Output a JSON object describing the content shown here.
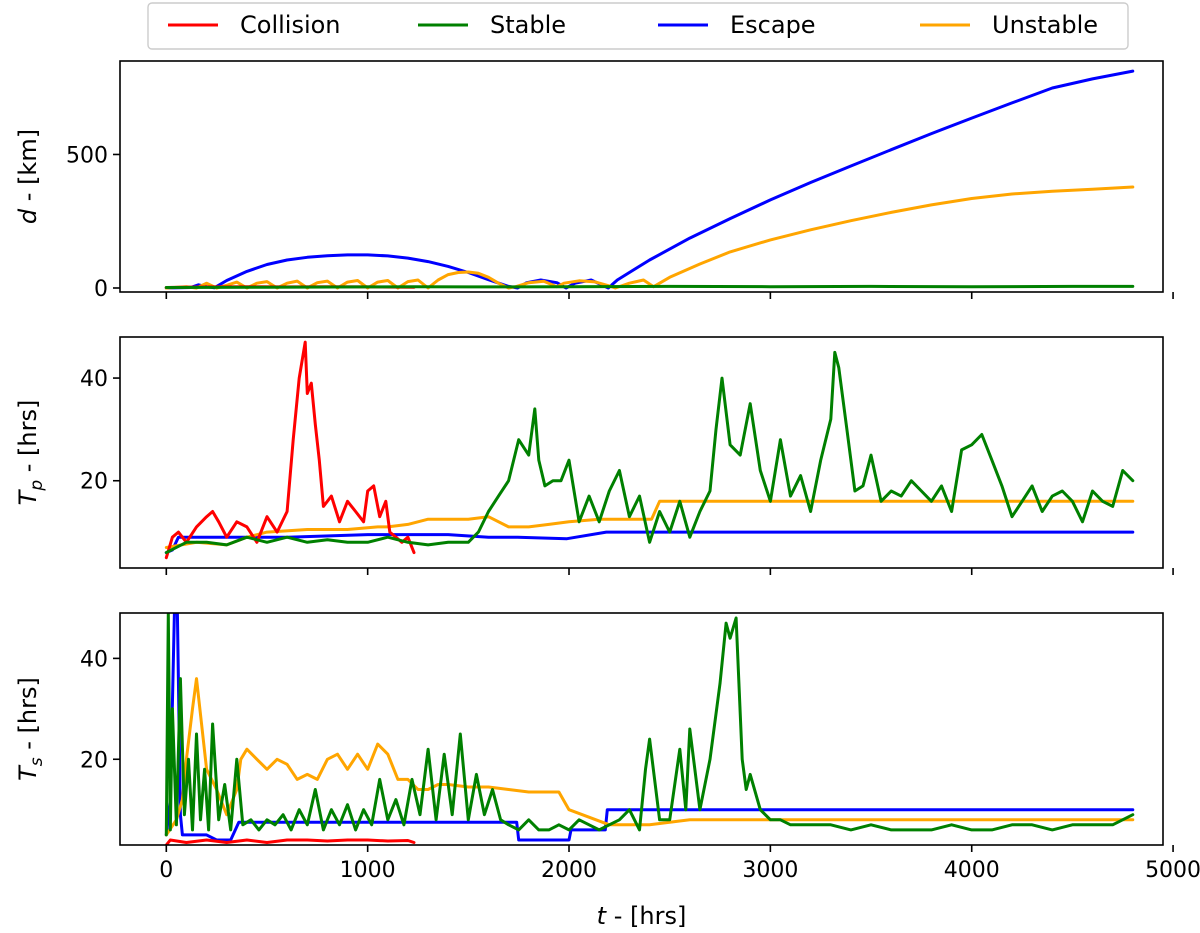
{
  "chart_data": [
    {
      "type": "line",
      "ylabel_main": "d",
      "ylabel_suffix": " - [km]",
      "xlim": [
        -230,
        4950
      ],
      "ylim": [
        -15,
        850
      ],
      "yticks": [
        0,
        500
      ],
      "ytick_labels": [
        "0",
        "500"
      ],
      "series": [
        {
          "name": "Escape",
          "color": "#0000ff",
          "x": [
            0,
            120,
            160,
            200,
            240,
            300,
            400,
            500,
            600,
            700,
            800,
            900,
            1000,
            1100,
            1200,
            1300,
            1400,
            1500,
            1600,
            1700,
            1745,
            1790,
            1860,
            1940,
            1985,
            2030,
            2110,
            2195,
            2240,
            2400,
            2600,
            2800,
            3000,
            3200,
            3400,
            3600,
            3800,
            4000,
            4200,
            4400,
            4600,
            4800
          ],
          "y": [
            0,
            2,
            12,
            5,
            1,
            28,
            62,
            88,
            105,
            115,
            121,
            124,
            124,
            120,
            112,
            99,
            81,
            58,
            31,
            6,
            0,
            20,
            30,
            20,
            0,
            18,
            30,
            0,
            30,
            105,
            187,
            260,
            330,
            395,
            457,
            518,
            578,
            636,
            693,
            749,
            783,
            812
          ]
        },
        {
          "name": "Unstable",
          "color": "#ffa500",
          "x": [
            0,
            100,
            150,
            200,
            250,
            300,
            350,
            400,
            450,
            500,
            550,
            600,
            650,
            700,
            750,
            800,
            850,
            900,
            950,
            1000,
            1050,
            1100,
            1150,
            1200,
            1250,
            1300,
            1350,
            1400,
            1450,
            1500,
            1550,
            1600,
            1650,
            1700,
            1735,
            1800,
            1875,
            1940,
            1975,
            2050,
            2130,
            2200,
            2230,
            2300,
            2370,
            2420,
            2500,
            2650,
            2800,
            3000,
            3200,
            3400,
            3600,
            3800,
            4000,
            4200,
            4400,
            4600,
            4800
          ],
          "y": [
            0,
            5,
            0,
            18,
            0,
            10,
            22,
            0,
            18,
            24,
            0,
            18,
            26,
            0,
            20,
            26,
            0,
            22,
            28,
            0,
            22,
            28,
            0,
            24,
            30,
            0,
            30,
            50,
            58,
            60,
            55,
            40,
            18,
            0,
            5,
            20,
            25,
            5,
            18,
            27,
            23,
            8,
            0,
            18,
            30,
            5,
            40,
            90,
            135,
            180,
            218,
            252,
            283,
            311,
            335,
            352,
            362,
            370,
            378
          ]
        },
        {
          "name": "Collision",
          "color": "#ff0000",
          "x": [
            0,
            200,
            400,
            600,
            800,
            1000,
            1230
          ],
          "y": [
            2,
            4,
            5,
            4,
            5,
            4,
            3
          ]
        },
        {
          "name": "Stable",
          "color": "#008000",
          "x": [
            0,
            500,
            1000,
            1230,
            1500,
            2000,
            2500,
            3000,
            3500,
            4000,
            4500,
            4800
          ],
          "y": [
            2,
            3,
            4,
            5,
            4,
            5,
            6,
            5,
            6,
            5,
            6,
            6
          ]
        }
      ]
    },
    {
      "type": "line",
      "ylabel_main": "T",
      "ylabel_sub": "p",
      "ylabel_suffix": " - [hrs]",
      "xlim": [
        -230,
        4950
      ],
      "ylim": [
        3,
        48
      ],
      "yticks": [
        20,
        40
      ],
      "ytick_labels": [
        "20",
        "40"
      ],
      "series": [
        {
          "name": "Escape",
          "color": "#0000ff",
          "x": [
            0,
            30,
            60,
            200,
            600,
            1000,
            1400,
            1600,
            1745,
            1990,
            2185,
            2400,
            4800
          ],
          "y": [
            6,
            6.5,
            9,
            9,
            9,
            9.5,
            9.5,
            9,
            9,
            8.7,
            10,
            10,
            10
          ]
        },
        {
          "name": "Unstable",
          "color": "#ffa500",
          "x": [
            0,
            150,
            300,
            400,
            500,
            700,
            900,
            1050,
            1100,
            1200,
            1300,
            1500,
            1600,
            1700,
            1800,
            1900,
            2000,
            2150,
            2200,
            2410,
            2450,
            2600,
            2800,
            4800
          ],
          "y": [
            7,
            8,
            7.5,
            9,
            10,
            10.5,
            10.5,
            11,
            11,
            11.5,
            12.5,
            12.5,
            13,
            11,
            11,
            11.5,
            12,
            12.5,
            12.5,
            12.5,
            16,
            16,
            16,
            16
          ]
        },
        {
          "name": "Collision",
          "color": "#ff0000",
          "x": [
            0,
            30,
            60,
            100,
            150,
            200,
            230,
            260,
            300,
            350,
            400,
            450,
            500,
            550,
            600,
            630,
            660,
            690,
            700,
            720,
            740,
            760,
            780,
            820,
            860,
            900,
            940,
            980,
            1000,
            1030,
            1060,
            1090,
            1110,
            1140,
            1170,
            1200,
            1230
          ],
          "y": [
            5,
            9,
            10,
            8,
            11,
            13,
            14,
            12,
            9,
            12,
            11,
            8,
            13,
            10,
            14,
            28,
            40,
            47,
            37,
            39,
            31,
            24,
            15,
            17,
            12,
            16,
            14,
            12,
            18,
            19,
            13,
            16,
            10,
            9,
            8,
            9,
            6
          ]
        },
        {
          "name": "Stable",
          "color": "#008000",
          "x": [
            0,
            100,
            200,
            300,
            400,
            500,
            600,
            700,
            800,
            900,
            1000,
            1100,
            1200,
            1300,
            1400,
            1500,
            1550,
            1600,
            1650,
            1700,
            1750,
            1800,
            1830,
            1850,
            1880,
            1920,
            1960,
            2000,
            2050,
            2100,
            2150,
            2200,
            2250,
            2300,
            2350,
            2400,
            2450,
            2500,
            2550,
            2600,
            2650,
            2700,
            2730,
            2760,
            2800,
            2850,
            2900,
            2950,
            3000,
            3050,
            3100,
            3150,
            3200,
            3250,
            3300,
            3320,
            3340,
            3380,
            3420,
            3460,
            3500,
            3550,
            3600,
            3650,
            3700,
            3750,
            3800,
            3850,
            3900,
            3950,
            4000,
            4050,
            4100,
            4150,
            4200,
            4250,
            4300,
            4350,
            4400,
            4450,
            4500,
            4550,
            4600,
            4650,
            4700,
            4750,
            4800
          ],
          "y": [
            6,
            8,
            8,
            7.5,
            9,
            8,
            9,
            8,
            8.5,
            8,
            8,
            9,
            8,
            7.5,
            8,
            8,
            10,
            14,
            17,
            20,
            28,
            25,
            34,
            24,
            19,
            20,
            20,
            24,
            12,
            17,
            12,
            18,
            22,
            13,
            17,
            8,
            14,
            10,
            16,
            9,
            14,
            18,
            30,
            40,
            27,
            25,
            35,
            22,
            16,
            28,
            17,
            21,
            14,
            24,
            32,
            45,
            42,
            30,
            18,
            19,
            25,
            16,
            18,
            17,
            20,
            18,
            16,
            19,
            14,
            26,
            27,
            29,
            24,
            19,
            13,
            16,
            19,
            14,
            17,
            18,
            16,
            12,
            18,
            16,
            15,
            22,
            20
          ]
        }
      ]
    },
    {
      "type": "line",
      "ylabel_main": "T",
      "ylabel_sub": "s",
      "ylabel_suffix": " - [hrs]",
      "xlabel_main": "t",
      "xlabel_suffix": " - [hrs]",
      "xlim": [
        -230,
        4950
      ],
      "ylim": [
        3,
        49
      ],
      "yticks": [
        20,
        40
      ],
      "ytick_labels": [
        "20",
        "40"
      ],
      "xticks": [
        0,
        1000,
        2000,
        3000,
        4000,
        5000
      ],
      "xtick_labels": [
        "0",
        "1000",
        "2000",
        "3000",
        "4000",
        "5000"
      ],
      "series": [
        {
          "name": "Escape",
          "color": "#0000ff",
          "x": [
            0,
            20,
            40,
            55,
            70,
            80,
            100,
            150,
            200,
            250,
            320,
            360,
            400,
            600,
            800,
            1000,
            1200,
            1400,
            1600,
            1740,
            1750,
            2000,
            2010,
            2180,
            2190,
            2400,
            2600,
            2800,
            3000,
            3500,
            4000,
            4800
          ],
          "y": [
            5,
            12,
            49,
            49,
            9,
            5,
            5,
            5,
            5,
            4,
            4,
            7.5,
            7.5,
            7.5,
            7.5,
            7.5,
            7.5,
            7.5,
            7.5,
            7.5,
            4,
            4,
            6,
            6,
            10,
            10,
            10,
            10,
            10,
            10,
            10,
            10
          ]
        },
        {
          "name": "Unstable",
          "color": "#ffa500",
          "x": [
            0,
            50,
            80,
            100,
            130,
            150,
            200,
            250,
            300,
            350,
            370,
            400,
            450,
            500,
            550,
            600,
            650,
            700,
            750,
            800,
            850,
            900,
            950,
            1000,
            1050,
            1100,
            1150,
            1200,
            1250,
            1300,
            1350,
            1400,
            1500,
            1600,
            1700,
            1800,
            1950,
            2000,
            2200,
            2400,
            2600,
            3000,
            3500,
            4000,
            4800
          ],
          "y": [
            5,
            8,
            12,
            20,
            30,
            36,
            18,
            14,
            9,
            14,
            20,
            22,
            20,
            18,
            20,
            19,
            16,
            17,
            16,
            20,
            21,
            18,
            21,
            18,
            23,
            21,
            16,
            16,
            14,
            14,
            15,
            15,
            14.5,
            14.5,
            14,
            13.5,
            13.5,
            10,
            7,
            7,
            8,
            8,
            8,
            8,
            8
          ]
        },
        {
          "name": "Collision",
          "color": "#ff0000",
          "x": [
            0,
            20,
            100,
            200,
            300,
            400,
            500,
            600,
            700,
            800,
            900,
            1000,
            1100,
            1200,
            1230
          ],
          "y": [
            3,
            4,
            3.5,
            4,
            3.5,
            4,
            3.5,
            4,
            4,
            3.8,
            4,
            4,
            3.8,
            3.9,
            3.5
          ]
        },
        {
          "name": "Stable",
          "color": "#008000",
          "x": [
            0,
            10,
            20,
            30,
            50,
            70,
            90,
            110,
            130,
            150,
            170,
            190,
            210,
            230,
            260,
            290,
            320,
            350,
            380,
            420,
            460,
            500,
            540,
            580,
            620,
            660,
            700,
            740,
            780,
            820,
            860,
            900,
            940,
            980,
            1020,
            1060,
            1100,
            1140,
            1180,
            1220,
            1260,
            1300,
            1340,
            1380,
            1420,
            1460,
            1500,
            1540,
            1580,
            1620,
            1660,
            1700,
            1750,
            1800,
            1850,
            1900,
            1950,
            2000,
            2050,
            2100,
            2150,
            2200,
            2250,
            2300,
            2350,
            2380,
            2400,
            2450,
            2500,
            2550,
            2580,
            2600,
            2650,
            2700,
            2750,
            2780,
            2800,
            2830,
            2860,
            2880,
            2900,
            2950,
            3000,
            3050,
            3100,
            3200,
            3300,
            3400,
            3500,
            3600,
            3700,
            3800,
            3900,
            4000,
            4100,
            4200,
            4300,
            4400,
            4500,
            4600,
            4700,
            4800
          ],
          "y": [
            5,
            49,
            6,
            30,
            7,
            36,
            9,
            20,
            6,
            25,
            8,
            18,
            6,
            27,
            8,
            15,
            6,
            20,
            7,
            8,
            6,
            8,
            7,
            9,
            6,
            10,
            7,
            14,
            6,
            10,
            7,
            11,
            6,
            10,
            7,
            16,
            8,
            12,
            7,
            16,
            9,
            22,
            8,
            21,
            9,
            25,
            8,
            17,
            9,
            14,
            8,
            7,
            6,
            8,
            6,
            6,
            7,
            6,
            8,
            7,
            6,
            7,
            8,
            10,
            6,
            18,
            24,
            8,
            8,
            22,
            10,
            26,
            10,
            20,
            35,
            47,
            44,
            48,
            20,
            14,
            17,
            10,
            8,
            8,
            7,
            7,
            7,
            6,
            7,
            6,
            6,
            6,
            7,
            6,
            6,
            7,
            7,
            6,
            7,
            7,
            7,
            9
          ]
        }
      ]
    }
  ],
  "legend": {
    "items": [
      {
        "label": "Collision",
        "color": "#ff0000"
      },
      {
        "label": "Stable",
        "color": "#008000"
      },
      {
        "label": "Escape",
        "color": "#0000ff"
      },
      {
        "label": "Unstable",
        "color": "#ffa500"
      }
    ]
  }
}
